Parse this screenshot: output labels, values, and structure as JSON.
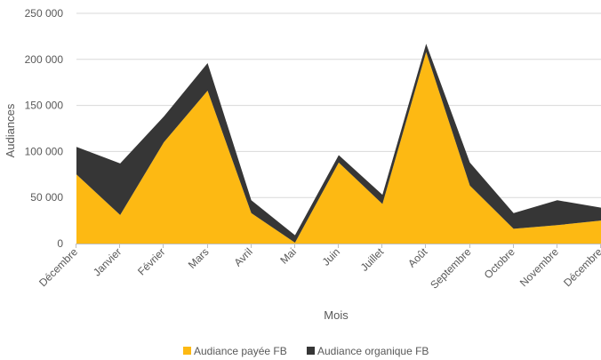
{
  "chart_data": {
    "type": "area",
    "stacked": true,
    "title": "",
    "xlabel": "Mois",
    "ylabel": "Audiances",
    "categories": [
      "Décembre",
      "Janvier",
      "Février",
      "Mars",
      "Avril",
      "Mai",
      "Juin",
      "Juillet",
      "Août",
      "Septembre",
      "Octobre",
      "Novembre",
      "Décembre"
    ],
    "series": [
      {
        "name": "Audiance payée FB",
        "color": "#FDB913",
        "values": [
          75000,
          31000,
          110000,
          166000,
          33000,
          1000,
          88000,
          43000,
          208000,
          63000,
          16000,
          20000,
          25000
        ]
      },
      {
        "name": "Audiance organique FB",
        "color": "#363636",
        "values": [
          30000,
          56000,
          28000,
          30000,
          14000,
          8000,
          8000,
          10000,
          9000,
          25000,
          17000,
          27000,
          14000
        ]
      }
    ],
    "ylim": [
      0,
      250000
    ],
    "yticks": [
      0,
      50000,
      100000,
      150000,
      200000,
      250000
    ],
    "ytick_labels": [
      "0",
      "50 000",
      "100 000",
      "150 000",
      "200 000",
      "250 000"
    ],
    "grid": true,
    "legend_position": "bottom"
  }
}
